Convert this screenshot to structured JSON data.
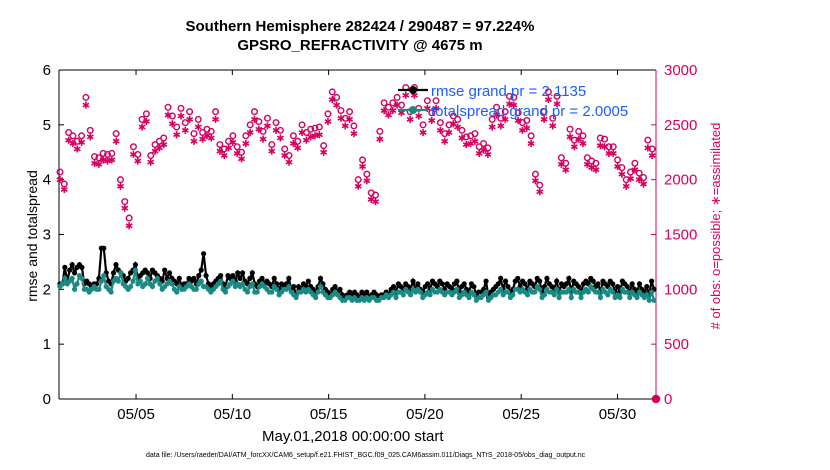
{
  "chart_data": {
    "type": "line",
    "title_line1": "Southern Hemisphere 282424 / 290487 = 97.224%",
    "title_line2": "GPSRO_REFRACTIVITY @ 4675 m",
    "xlabel": "May.01,2018 00:00:00 start",
    "ylabel_left": "rmse and totalspread",
    "ylabel_right": "# of obs: o=possible; ∗=assimilated",
    "footnote": "data file: /Users/raeder/DAI/ATM_forcXX/CAM6_setup/f.e21.FHIST_BGC.f09_025.CAM6assim.011/Diags_NTrS_2018-05/obs_diag_output.nc",
    "x_ticks": [
      {
        "x": 5,
        "label": "05/05"
      },
      {
        "x": 10,
        "label": "05/10"
      },
      {
        "x": 15,
        "label": "05/15"
      },
      {
        "x": 20,
        "label": "05/20"
      },
      {
        "x": 25,
        "label": "05/25"
      },
      {
        "x": 30,
        "label": "05/30"
      }
    ],
    "x_range": [
      1,
      32
    ],
    "y_left_range": [
      0,
      6
    ],
    "y_left_ticks": [
      "0",
      "1",
      "2",
      "3",
      "4",
      "5",
      "6"
    ],
    "y_right_range": [
      0,
      3000
    ],
    "y_right_ticks": [
      "0",
      "500",
      "1000",
      "1500",
      "2000",
      "2500",
      "3000"
    ],
    "legend_position": "top-right",
    "colors": {
      "rmse": "#000000",
      "spread": "#1b8a84",
      "obs": "#d6005e"
    },
    "series": [
      {
        "name": "rmse  grand pr = 2.1135",
        "axis": "left",
        "values": [
          2.1,
          2.1,
          2.4,
          2.15,
          2.35,
          2.45,
          2.3,
          2.4,
          2.45,
          2.4,
          2.1,
          2.15,
          2.1,
          2.05,
          2.1,
          2.1,
          2.2,
          2.75,
          2.75,
          2.3,
          2.15,
          2.1,
          2.3,
          2.45,
          2.35,
          2.3,
          2.25,
          2.15,
          2.2,
          2.3,
          2.35,
          2.45,
          2.2,
          2.25,
          2.3,
          2.35,
          2.3,
          2.2,
          2.35,
          2.3,
          2.25,
          2.2,
          2.15,
          2.35,
          2.2,
          2.3,
          2.2,
          2.15,
          2.1,
          2.2,
          2.05,
          2.1,
          2.1,
          2.2,
          2.15,
          2.2,
          2.1,
          2.25,
          2.35,
          2.65,
          2.25,
          2.1,
          2.05,
          2.1,
          2.15,
          2.2,
          2.25,
          2.1,
          2.05,
          2.25,
          2.2,
          2.25,
          2.15,
          2.3,
          2.2,
          2.3,
          2.15,
          2.1,
          2.2,
          2.3,
          2.1,
          2.05,
          2.15,
          2.2,
          2.1,
          2.15,
          2.1,
          2.05,
          2.2,
          2.1,
          2.0,
          2.1,
          2.05,
          2.1,
          2.2,
          2.0,
          2.05,
          1.9,
          2.05,
          2.0,
          2.1,
          2.05,
          2.15,
          2.05,
          2.0,
          1.95,
          2.05,
          2.2,
          2.1,
          2.0,
          1.95,
          1.9,
          2.0,
          2.05,
          1.95,
          2.0,
          1.9,
          1.85,
          1.9,
          1.95,
          1.9,
          1.95,
          1.9,
          1.85,
          1.95,
          1.9,
          1.95,
          1.85,
          1.9,
          1.95,
          1.9,
          1.85,
          1.9,
          1.9,
          1.95,
          1.9,
          2.0,
          2.05,
          1.95,
          2.1,
          2.05,
          2.0,
          2.1,
          2.05,
          2.0,
          2.15,
          2.0,
          2.1,
          2.0,
          1.95,
          2.05,
          2.1,
          2.0,
          2.15,
          2.1,
          2.05,
          2.15,
          2.1,
          2.0,
          2.1,
          2.05,
          2.0,
          2.1,
          2.15,
          1.95,
          2.05,
          2.1,
          2.0,
          1.95,
          2.1,
          2.05,
          1.9,
          1.95,
          1.95,
          2.0,
          2.15,
          1.85,
          1.95,
          2.0,
          2.05,
          2.1,
          2.2,
          2.0,
          2.15,
          2.05,
          1.95,
          2.0,
          2.15,
          2.2,
          2.05,
          2.15,
          2.1,
          2.0,
          2.15,
          2.1,
          2.05,
          2.2,
          2.15,
          1.95,
          2.05,
          2.2,
          2.1,
          2.05,
          2.0,
          2.15,
          1.95,
          2.1,
          2.05,
          2.1,
          2.2,
          1.95,
          2.15,
          2.1,
          2.05,
          1.95,
          2.1,
          2.15,
          2.1,
          2.2,
          2.15,
          2.05,
          2.1,
          1.95,
          2.15,
          2.1,
          2.05,
          2.15,
          2.1,
          1.95,
          2.05,
          1.95,
          2.15,
          2.1,
          2.05,
          1.95,
          2.1,
          2.0,
          1.95,
          2.1,
          2.0,
          1.95,
          2.05,
          1.9,
          2.15,
          2.0
        ]
      },
      {
        "name": "totalspread  grand pr = 2.0005",
        "axis": "left",
        "values": [
          2.05,
          2.1,
          2.2,
          2.1,
          2.15,
          2.2,
          2.0,
          2.1,
          2.25,
          2.2,
          2.0,
          2.0,
          1.95,
          2.0,
          2.05,
          2.0,
          2.0,
          2.15,
          2.25,
          2.05,
          2.0,
          1.95,
          2.15,
          2.2,
          2.15,
          2.3,
          2.1,
          2.05,
          2.0,
          2.05,
          2.15,
          2.35,
          2.1,
          2.15,
          2.05,
          2.1,
          2.2,
          2.1,
          2.05,
          2.15,
          2.2,
          2.1,
          2.0,
          2.05,
          2.1,
          2.15,
          2.1,
          2.0,
          1.95,
          2.05,
          2.0,
          2.0,
          2.05,
          2.1,
          2.05,
          2.0,
          2.0,
          2.1,
          2.15,
          2.05,
          2.05,
          2.0,
          1.95,
          2.0,
          2.05,
          2.1,
          2.15,
          2.0,
          1.95,
          2.05,
          2.1,
          2.15,
          2.05,
          2.1,
          2.05,
          2.1,
          2.0,
          1.95,
          2.05,
          2.1,
          1.95,
          1.95,
          2.05,
          2.1,
          2.05,
          2.0,
          1.95,
          1.95,
          2.05,
          2.0,
          1.9,
          1.95,
          2.0,
          2.0,
          2.05,
          1.95,
          1.9,
          1.85,
          1.95,
          1.95,
          2.0,
          1.95,
          2.0,
          1.95,
          1.9,
          1.85,
          1.95,
          2.05,
          1.95,
          1.9,
          1.85,
          1.85,
          1.9,
          1.95,
          1.9,
          1.85,
          1.8,
          1.8,
          1.85,
          1.85,
          1.8,
          1.85,
          1.8,
          1.8,
          1.85,
          1.8,
          1.85,
          1.8,
          1.85,
          1.85,
          1.8,
          1.8,
          1.85,
          1.85,
          1.9,
          1.85,
          1.9,
          1.95,
          1.85,
          1.95,
          1.95,
          1.9,
          2.0,
          1.95,
          1.9,
          2.0,
          1.95,
          2.0,
          1.95,
          1.85,
          1.9,
          1.95,
          1.9,
          2.0,
          1.95,
          1.95,
          2.0,
          1.95,
          1.9,
          1.95,
          1.95,
          1.9,
          1.95,
          2.0,
          1.85,
          1.9,
          1.95,
          1.9,
          1.85,
          1.95,
          1.9,
          1.8,
          1.85,
          1.85,
          1.9,
          1.95,
          1.8,
          1.85,
          1.9,
          1.9,
          1.95,
          2.0,
          1.9,
          1.95,
          1.95,
          1.85,
          1.9,
          2.0,
          2.0,
          1.95,
          2.0,
          1.95,
          1.9,
          2.0,
          1.95,
          1.95,
          2.05,
          2.0,
          1.85,
          1.9,
          2.0,
          1.95,
          1.95,
          1.9,
          2.0,
          1.85,
          1.95,
          1.95,
          1.95,
          2.0,
          1.85,
          2.0,
          1.95,
          1.95,
          1.85,
          1.95,
          2.0,
          1.95,
          2.05,
          2.0,
          1.95,
          1.95,
          1.85,
          2.0,
          1.95,
          1.9,
          2.0,
          1.95,
          1.85,
          1.9,
          1.85,
          2.0,
          1.95,
          1.95,
          1.85,
          1.95,
          1.9,
          1.85,
          1.95,
          1.9,
          1.85,
          1.9,
          1.8,
          1.95,
          1.8
        ]
      },
      {
        "name": "obs possible",
        "axis": "right",
        "marker": "o",
        "values": [
          2070,
          1960,
          2430,
          2400,
          2350,
          2400,
          2750,
          2450,
          2210,
          2200,
          2240,
          2230,
          2240,
          2420,
          2000,
          1800,
          1650,
          2300,
          2230,
          2550,
          2600,
          2220,
          2320,
          2350,
          2380,
          2660,
          2580,
          2480,
          2650,
          2520,
          2620,
          2420,
          2550,
          2430,
          2460,
          2440,
          2620,
          2320,
          2280,
          2350,
          2400,
          2300,
          2250,
          2400,
          2500,
          2620,
          2530,
          2440,
          2560,
          2320,
          2520,
          2450,
          2280,
          2220,
          2400,
          2350,
          2500,
          2430,
          2460,
          2470,
          2480,
          2310,
          2600,
          2800,
          2750,
          2630,
          2560,
          2620,
          2490,
          2000,
          2180,
          2050,
          1880,
          1860,
          2440,
          2700,
          2660,
          2700,
          2750,
          2680,
          2840,
          2620,
          2840,
          2650,
          2500,
          2720,
          2610,
          2720,
          2520,
          2420,
          2500,
          2580,
          2550,
          2450,
          2390,
          2400,
          2420,
          2300,
          2330,
          2290,
          2550,
          2660,
          2560,
          2620,
          2760,
          2750,
          2610,
          2520,
          2540,
          2400,
          2050,
          1950,
          2620,
          2800,
          2560,
          2760,
          2200,
          2150,
          2460,
          2360,
          2440,
          2400,
          2200,
          2170,
          2150,
          2380,
          2370,
          2300,
          2300,
          2180,
          2110,
          2000,
          2070,
          2150,
          2060,
          2020,
          2360,
          2280
        ],
        "x_start": 1.05,
        "x_end": 31.8
      },
      {
        "name": "obs assimilated",
        "axis": "right",
        "marker": "*",
        "values": [
          2000,
          1910,
          2360,
          2330,
          2280,
          2340,
          2680,
          2390,
          2150,
          2140,
          2180,
          2170,
          2180,
          2350,
          1940,
          1740,
          1580,
          2230,
          2170,
          2480,
          2530,
          2160,
          2260,
          2290,
          2320,
          2590,
          2510,
          2410,
          2580,
          2450,
          2550,
          2350,
          2480,
          2370,
          2400,
          2380,
          2550,
          2260,
          2220,
          2290,
          2340,
          2240,
          2190,
          2330,
          2430,
          2550,
          2460,
          2370,
          2490,
          2260,
          2450,
          2380,
          2220,
          2160,
          2330,
          2290,
          2430,
          2360,
          2390,
          2400,
          2410,
          2250,
          2530,
          2730,
          2680,
          2560,
          2490,
          2550,
          2420,
          1940,
          2120,
          1990,
          1820,
          1800,
          2370,
          2630,
          2590,
          2630,
          2680,
          2610,
          2770,
          2550,
          2770,
          2580,
          2430,
          2650,
          2540,
          2650,
          2450,
          2350,
          2430,
          2510,
          2480,
          2380,
          2320,
          2330,
          2350,
          2240,
          2270,
          2230,
          2480,
          2590,
          2490,
          2550,
          2690,
          2680,
          2540,
          2450,
          2470,
          2330,
          1990,
          1890,
          2550,
          2730,
          2490,
          2690,
          2140,
          2090,
          2390,
          2300,
          2370,
          2330,
          2140,
          2110,
          2090,
          2310,
          2300,
          2240,
          2240,
          2120,
          2050,
          1940,
          2010,
          2090,
          2000,
          1960,
          2290,
          2220
        ],
        "x_start": 1.05,
        "x_end": 31.8
      }
    ]
  },
  "legend": {
    "rmse_label": "rmse  grand pr = 2.1135",
    "spread_label": "totalspread  grand pr = 2.0005"
  }
}
